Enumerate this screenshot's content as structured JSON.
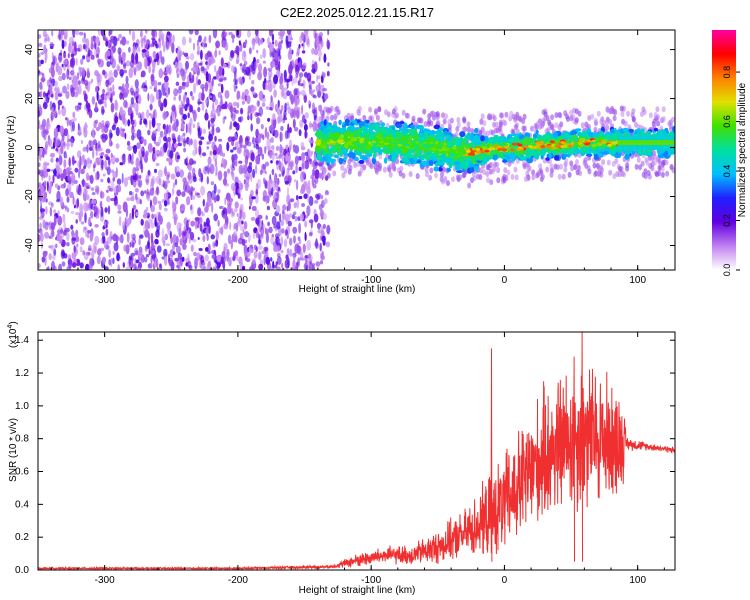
{
  "title": "C2E2.2025.012.21.15.R17",
  "chart_data": [
    {
      "type": "heatmap",
      "xlabel": "Height of straight line (km)",
      "ylabel": "Frequency (Hz)",
      "xlim": [
        -350,
        128
      ],
      "ylim": [
        -50,
        48
      ],
      "xticks": [
        -300,
        -200,
        -100,
        0,
        100
      ],
      "xtick_labels": [
        "-300",
        "-200",
        "-100",
        "0",
        "100"
      ],
      "yticks": [
        -40,
        -20,
        0,
        20,
        40
      ],
      "ytick_labels": [
        "-40",
        "-20",
        "0",
        "20",
        "40"
      ],
      "colorbar": {
        "label": "Normalized spectral amplitude",
        "range": [
          0,
          0.97
        ],
        "ticks": [
          0.0,
          0.2,
          0.4,
          0.6,
          0.8
        ],
        "tick_labels": [
          "0.0",
          "0.2",
          "0.4",
          "0.6",
          "0.8"
        ],
        "colormap": [
          "#ffffff",
          "#c080f0",
          "#6000e0",
          "#2020ff",
          "#00c0ff",
          "#00e0a0",
          "#40e000",
          "#e0e000",
          "#ff8000",
          "#ff0000",
          "#ff00a0"
        ]
      },
      "regions": [
        {
          "x": [
            -350,
            -140
          ],
          "description_level": 0.2,
          "freq_range": [
            -50,
            48
          ]
        },
        {
          "x": [
            -140,
            128
          ],
          "band_center_hz": [
            2,
            3,
            2,
            0,
            -2,
            0,
            1,
            2,
            2
          ],
          "band_x": [
            -140,
            -110,
            -80,
            -50,
            -30,
            0,
            30,
            60,
            128
          ],
          "peak_level": 0.85
        }
      ]
    },
    {
      "type": "line",
      "xlabel": "Height of straight line (km)",
      "ylabel": "SNR (10 * v/v)",
      "y_multiplier": "(x10",
      "y_multiplier_exp": "4",
      "y_multiplier_close": ")",
      "xlim": [
        -350,
        128
      ],
      "ylim": [
        0,
        1.45
      ],
      "xticks": [
        -300,
        -200,
        -100,
        0,
        100
      ],
      "xtick_labels": [
        "-300",
        "-200",
        "-100",
        "0",
        "100"
      ],
      "yticks": [
        0.0,
        0.2,
        0.4,
        0.6,
        0.8,
        1.0,
        1.2,
        1.4
      ],
      "ytick_labels": [
        "0.0",
        "0.2",
        "0.4",
        "0.6",
        "0.8",
        "1.0",
        "1.2",
        "1.4"
      ],
      "series_color": "#f03030",
      "envelope": {
        "x": [
          -350,
          -200,
          -130,
          -110,
          -90,
          -70,
          -50,
          -30,
          -15,
          0,
          15,
          30,
          45,
          60,
          75,
          88,
          92,
          110,
          128
        ],
        "mean": [
          0.01,
          0.01,
          0.02,
          0.06,
          0.09,
          0.09,
          0.14,
          0.22,
          0.3,
          0.4,
          0.55,
          0.7,
          0.78,
          0.82,
          0.8,
          0.78,
          0.77,
          0.75,
          0.73
        ],
        "amp": [
          0.005,
          0.005,
          0.01,
          0.04,
          0.05,
          0.06,
          0.1,
          0.14,
          0.22,
          0.3,
          0.35,
          0.4,
          0.42,
          0.45,
          0.4,
          0.3,
          0.04,
          0.02,
          0.02
        ]
      },
      "spikes": [
        {
          "x": -10,
          "y": 1.35
        },
        {
          "x": 58,
          "y": 1.45
        },
        {
          "x": 52,
          "y": 1.3
        }
      ]
    }
  ]
}
